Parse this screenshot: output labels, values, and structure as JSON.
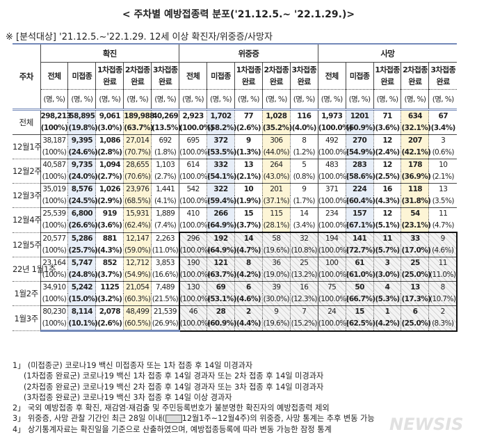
{
  "title": "< 주차별 예방접종력 분포('21.12.5.~ '22.1.29.)>",
  "subtitle": "※ [분석대상] '21.12.5.~'22.1.29. 12세 이상 확진자/위중증/사망자",
  "header": {
    "row_label": "주차",
    "groups": [
      "확진",
      "위중증",
      "사망"
    ],
    "columns": [
      [
        "전체",
        ""
      ],
      [
        "미접종",
        ""
      ],
      [
        "1차접종",
        "완료"
      ],
      [
        "2차접종",
        "완료"
      ],
      [
        "3차접종",
        "완료"
      ]
    ],
    "unit": "(명, %)"
  },
  "colors": {
    "unvaccinated_col": "#e7eef8",
    "second_dose_col": "#fdf5d6",
    "rule": "#7288b8"
  },
  "rows": [
    {
      "label": "전체",
      "cells": [
        [
          "298,213",
          "(100%)"
        ],
        [
          "58,895",
          "(19.8%)"
        ],
        [
          "9,061",
          "(3.0%)"
        ],
        [
          "189,988",
          "(63.7%)"
        ],
        [
          "40,269",
          "(13.5%)"
        ],
        [
          "2,923",
          "(100.0%)"
        ],
        [
          "1,702",
          "(58.2%)"
        ],
        [
          "77",
          "(2.6%)"
        ],
        [
          "1,028",
          "(35.2%)"
        ],
        [
          "116",
          "(4.0%)"
        ],
        [
          "1,973",
          "(100.0%)"
        ],
        [
          "1201",
          "(60.9%)"
        ],
        [
          "71",
          "(3.6%)"
        ],
        [
          "634",
          "(32.1%)"
        ],
        [
          "67",
          "(3.4%)"
        ]
      ]
    },
    {
      "label": "12월1주",
      "cells": [
        [
          "38,187",
          "(100%)"
        ],
        [
          "9,395",
          "(24.6%)"
        ],
        [
          "1,086",
          "(2.8%)"
        ],
        [
          "27,014",
          "(70.7%)"
        ],
        [
          "692",
          "(1.8%)"
        ],
        [
          "695",
          "(100.0%)"
        ],
        [
          "372",
          "(53.5%)"
        ],
        [
          "9",
          "(1.3%)"
        ],
        [
          "306",
          "(44.0%)"
        ],
        [
          "8",
          "(1.2%)"
        ],
        [
          "492",
          "(100.0%)"
        ],
        [
          "270",
          "(54.9%)"
        ],
        [
          "12",
          "(2.4%)"
        ],
        [
          "207",
          "(42.1%)"
        ],
        [
          "3",
          "(0.6%)"
        ]
      ]
    },
    {
      "label": "12월2주",
      "cells": [
        [
          "40,587",
          "(100%)"
        ],
        [
          "9,735",
          "(24.0%)"
        ],
        [
          "1,094",
          "(2.7%)"
        ],
        [
          "28,655",
          "(70.6%)"
        ],
        [
          "1,103",
          "(2.7%)"
        ],
        [
          "614",
          "(100.0%)"
        ],
        [
          "332",
          "(54.1%)"
        ],
        [
          "13",
          "(2.1%)"
        ],
        [
          "264",
          "(43.0%)"
        ],
        [
          "5",
          "(0.8%)"
        ],
        [
          "483",
          "(100.0%)"
        ],
        [
          "283",
          "(58.6%)"
        ],
        [
          "12",
          "(2.5%)"
        ],
        [
          "178",
          "(36.9%)"
        ],
        [
          "10",
          "(2.1%)"
        ]
      ]
    },
    {
      "label": "12월3주",
      "cells": [
        [
          "35,019",
          "(100%)"
        ],
        [
          "8,576",
          "(24.5%)"
        ],
        [
          "1,026",
          "(2.9%)"
        ],
        [
          "23,976",
          "(68.5%)"
        ],
        [
          "1,441",
          "(4.1%)"
        ],
        [
          "542",
          "(100.0%)"
        ],
        [
          "322",
          "(59.4%)"
        ],
        [
          "10",
          "(1.9%)"
        ],
        [
          "201",
          "(37.1%)"
        ],
        [
          "9",
          "(1.7%)"
        ],
        [
          "371",
          "(100.0%)"
        ],
        [
          "224",
          "(60.4%)"
        ],
        [
          "16",
          "(4.3%)"
        ],
        [
          "118",
          "(31.8%)"
        ],
        [
          "13",
          "(3.5%)"
        ]
      ]
    },
    {
      "label": "12월4주",
      "cells": [
        [
          "25,539",
          "(100%)"
        ],
        [
          "6,800",
          "(26.6%)"
        ],
        [
          "919",
          "(3.6%)"
        ],
        [
          "15,931",
          "(62.4%)"
        ],
        [
          "1,889",
          "(7.4%)"
        ],
        [
          "410",
          "(100.0%)"
        ],
        [
          "266",
          "(64.9%)"
        ],
        [
          "15",
          "(3.7%)"
        ],
        [
          "115",
          "(28.1%)"
        ],
        [
          "14",
          "(3.4%)"
        ],
        [
          "234",
          "(100.0%)"
        ],
        [
          "157",
          "(67.1%)"
        ],
        [
          "12",
          "(5.1%)"
        ],
        [
          "54",
          "(23.1%)"
        ],
        [
          "11",
          "(4.7%)"
        ]
      ]
    },
    {
      "label": "12월5주",
      "cells": [
        [
          "20,577",
          "(100%)"
        ],
        [
          "5,286",
          "(25.7%)"
        ],
        [
          "881",
          "(4.3%)"
        ],
        [
          "12,147",
          "(59.0%)"
        ],
        [
          "2,263",
          "(11.0%)"
        ],
        [
          "296",
          "(100.0%)"
        ],
        [
          "192",
          "(64.9%)"
        ],
        [
          "14",
          "(4.7%)"
        ],
        [
          "58",
          "(19.6%)"
        ],
        [
          "32",
          "(10.8%)"
        ],
        [
          "194",
          "(100.0%)"
        ],
        [
          "141",
          "(72.7%)"
        ],
        [
          "11",
          "(5.7%)"
        ],
        [
          "33",
          "(17.0%)"
        ],
        [
          "9",
          "(4.6%)"
        ]
      ]
    },
    {
      "label": "22년 1월1주",
      "cells": [
        [
          "23,164",
          "(100%)"
        ],
        [
          "5,747",
          "(24.8%)"
        ],
        [
          "852",
          "(3.7%)"
        ],
        [
          "12,712",
          "(54.9%)"
        ],
        [
          "3,853",
          "(16.6%)"
        ],
        [
          "190",
          "(100.0%)"
        ],
        [
          "121",
          "(63.7%)"
        ],
        [
          "8",
          "(4.2%)"
        ],
        [
          "36",
          "(19.0%)"
        ],
        [
          "25",
          "(13.2%)"
        ],
        [
          "100",
          "(100.0%)"
        ],
        [
          "61",
          "(61.0%)"
        ],
        [
          "3",
          "(3.0%)"
        ],
        [
          "25",
          "(25.0%)"
        ],
        [
          "11",
          "(11.0%)"
        ]
      ]
    },
    {
      "label": "1월2주",
      "cells": [
        [
          "34,910",
          "(100%)"
        ],
        [
          "5,242",
          "(15.0%)"
        ],
        [
          "1125",
          "(3.2%)"
        ],
        [
          "21,054",
          "(60.3%)"
        ],
        [
          "7,489",
          "(21.5%)"
        ],
        [
          "130",
          "(100.0%)"
        ],
        [
          "69",
          "(53.1%)"
        ],
        [
          "6",
          "(4.6%)"
        ],
        [
          "39",
          "(30.0%)"
        ],
        [
          "16",
          "(12.3%)"
        ],
        [
          "75",
          "(100.0%)"
        ],
        [
          "50",
          "(66.7%)"
        ],
        [
          "4",
          "(5.3%)"
        ],
        [
          "13",
          "(17.3%)"
        ],
        [
          "8",
          "(10.7%)"
        ]
      ]
    },
    {
      "label": "1월3주",
      "cells": [
        [
          "80,230",
          "(100%)"
        ],
        [
          "8,114",
          "(10.1%)"
        ],
        [
          "2,078",
          "(2.6%)"
        ],
        [
          "48,499",
          "(60.5%)"
        ],
        [
          "21,539",
          "(26.9%)"
        ],
        [
          "46",
          "(100.0%)"
        ],
        [
          "28",
          "(60.9%)"
        ],
        [
          "2",
          "(4.4%)"
        ],
        [
          "9",
          "(19.6%)"
        ],
        [
          "7",
          "(15.2%)"
        ],
        [
          "24",
          "(100.0%)"
        ],
        [
          "15",
          "(62.5%)"
        ],
        [
          "1",
          "(4.2%)"
        ],
        [
          "6",
          "(25.0%)"
        ],
        [
          "2",
          "(8.3%)"
        ]
      ]
    }
  ],
  "notes": {
    "n1": "1」 (미접종군) 코로나19 백신 미접종자 또는 1차 접종 후 14일 미경과자",
    "n1a": "(1차접종 완료군) 코로나19 백신 1차 접종 후 14일 경과자 또는 2차 접종 후 14일 미경과자",
    "n1b": "(2차접종 완료군) 코로나19 백신 2차 접종 후 14일 경과자 또는 3차 접종 후 14일 미경과자",
    "n1c": "(3차접종 완료군) 코로나19 백신 3차 접종 후 14일 이상 경과자",
    "n2": "2」 국외 예방접종 후 확진, 재감염·재검출 및 주민등록번호가 불분명한 확진자의 예방접종력 제외",
    "n3a": "3」 위중증, 사망 관찰 기간인 최근 28일 이내(",
    "n3b": "12월1주~12월4주)의 위중증, 사망 통계는 추후 변동 가능",
    "n4": "4」 상기통계자료는 확진일을 기준으로 산출하였으며, 예방접종등록에 따라 변동 가능한 잠정 통계"
  },
  "watermark": "NEWSIS"
}
